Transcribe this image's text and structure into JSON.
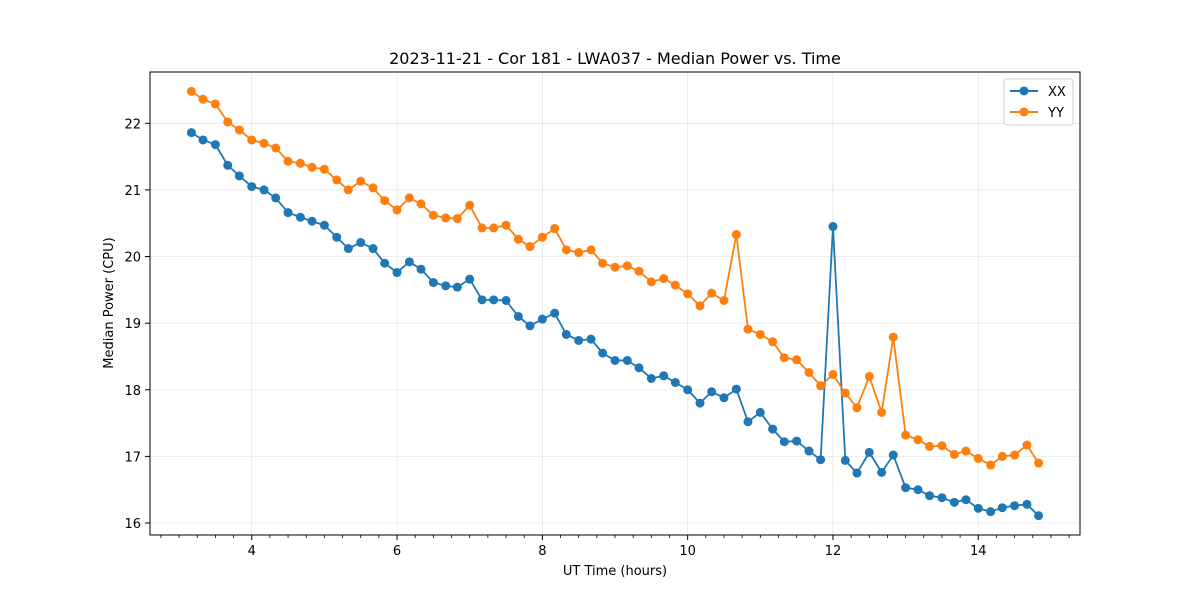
{
  "chart_data": {
    "type": "line",
    "title": "2023-11-21 - Cor 181 - LWA037 - Median Power vs. Time",
    "xlabel": "UT Time (hours)",
    "ylabel": "Median Power (CPU)",
    "xlim": [
      2.6,
      15.4
    ],
    "ylim": [
      15.82,
      22.77
    ],
    "x_major_ticks": [
      4,
      6,
      8,
      10,
      12,
      14
    ],
    "x_minor_step": 0.25,
    "y_major_ticks": [
      16,
      17,
      18,
      19,
      20,
      21,
      22
    ],
    "grid": true,
    "legend_position": "top-right",
    "x": [
      3.17,
      3.33,
      3.5,
      3.67,
      3.83,
      4.0,
      4.17,
      4.33,
      4.5,
      4.67,
      4.83,
      5.0,
      5.17,
      5.33,
      5.5,
      5.67,
      5.83,
      6.0,
      6.17,
      6.33,
      6.5,
      6.67,
      6.83,
      7.0,
      7.17,
      7.33,
      7.5,
      7.67,
      7.83,
      8.0,
      8.17,
      8.33,
      8.5,
      8.67,
      8.83,
      9.0,
      9.17,
      9.33,
      9.5,
      9.67,
      9.83,
      10.0,
      10.17,
      10.33,
      10.5,
      10.67,
      10.83,
      11.0,
      11.17,
      11.33,
      11.5,
      11.67,
      11.83,
      12.0,
      12.17,
      12.33,
      12.5,
      12.67,
      12.83,
      13.0,
      13.17,
      13.33,
      13.5,
      13.67,
      13.83,
      14.0,
      14.17,
      14.33,
      14.5,
      14.67,
      14.83
    ],
    "series": [
      {
        "name": "XX",
        "color": "#1f77b4",
        "values": [
          21.86,
          21.75,
          21.68,
          21.37,
          21.21,
          21.05,
          21.0,
          20.88,
          20.66,
          20.59,
          20.53,
          20.47,
          20.29,
          20.12,
          20.21,
          20.12,
          19.9,
          19.76,
          19.92,
          19.81,
          19.61,
          19.56,
          19.54,
          19.66,
          19.35,
          19.35,
          19.34,
          19.1,
          18.96,
          19.06,
          19.15,
          18.83,
          18.74,
          18.76,
          18.55,
          18.44,
          18.44,
          18.33,
          18.17,
          18.21,
          18.11,
          18.0,
          17.8,
          17.97,
          17.88,
          18.01,
          17.52,
          17.66,
          17.41,
          17.22,
          17.23,
          17.08,
          16.95,
          20.45,
          16.94,
          16.75,
          17.06,
          16.76,
          17.02,
          16.53,
          16.5,
          16.41,
          16.38,
          16.31,
          16.35,
          16.22,
          16.17,
          16.23,
          16.26,
          16.28,
          16.11
        ]
      },
      {
        "name": "YY",
        "color": "#ff7f0e",
        "values": [
          22.48,
          22.36,
          22.29,
          22.02,
          21.9,
          21.75,
          21.7,
          21.63,
          21.43,
          21.4,
          21.34,
          21.31,
          21.15,
          21.0,
          21.13,
          21.03,
          20.84,
          20.7,
          20.88,
          20.79,
          20.62,
          20.58,
          20.57,
          20.77,
          20.43,
          20.43,
          20.47,
          20.26,
          20.15,
          20.29,
          20.42,
          20.1,
          20.06,
          20.1,
          19.9,
          19.84,
          19.86,
          19.78,
          19.62,
          19.67,
          19.57,
          19.44,
          19.26,
          19.45,
          19.34,
          20.33,
          18.91,
          18.83,
          18.72,
          18.48,
          18.45,
          18.26,
          18.06,
          18.23,
          17.95,
          17.73,
          18.2,
          17.66,
          18.79,
          17.32,
          17.25,
          17.15,
          17.16,
          17.03,
          17.08,
          16.97,
          16.87,
          17.0,
          17.02,
          17.17,
          16.9
        ]
      }
    ]
  }
}
